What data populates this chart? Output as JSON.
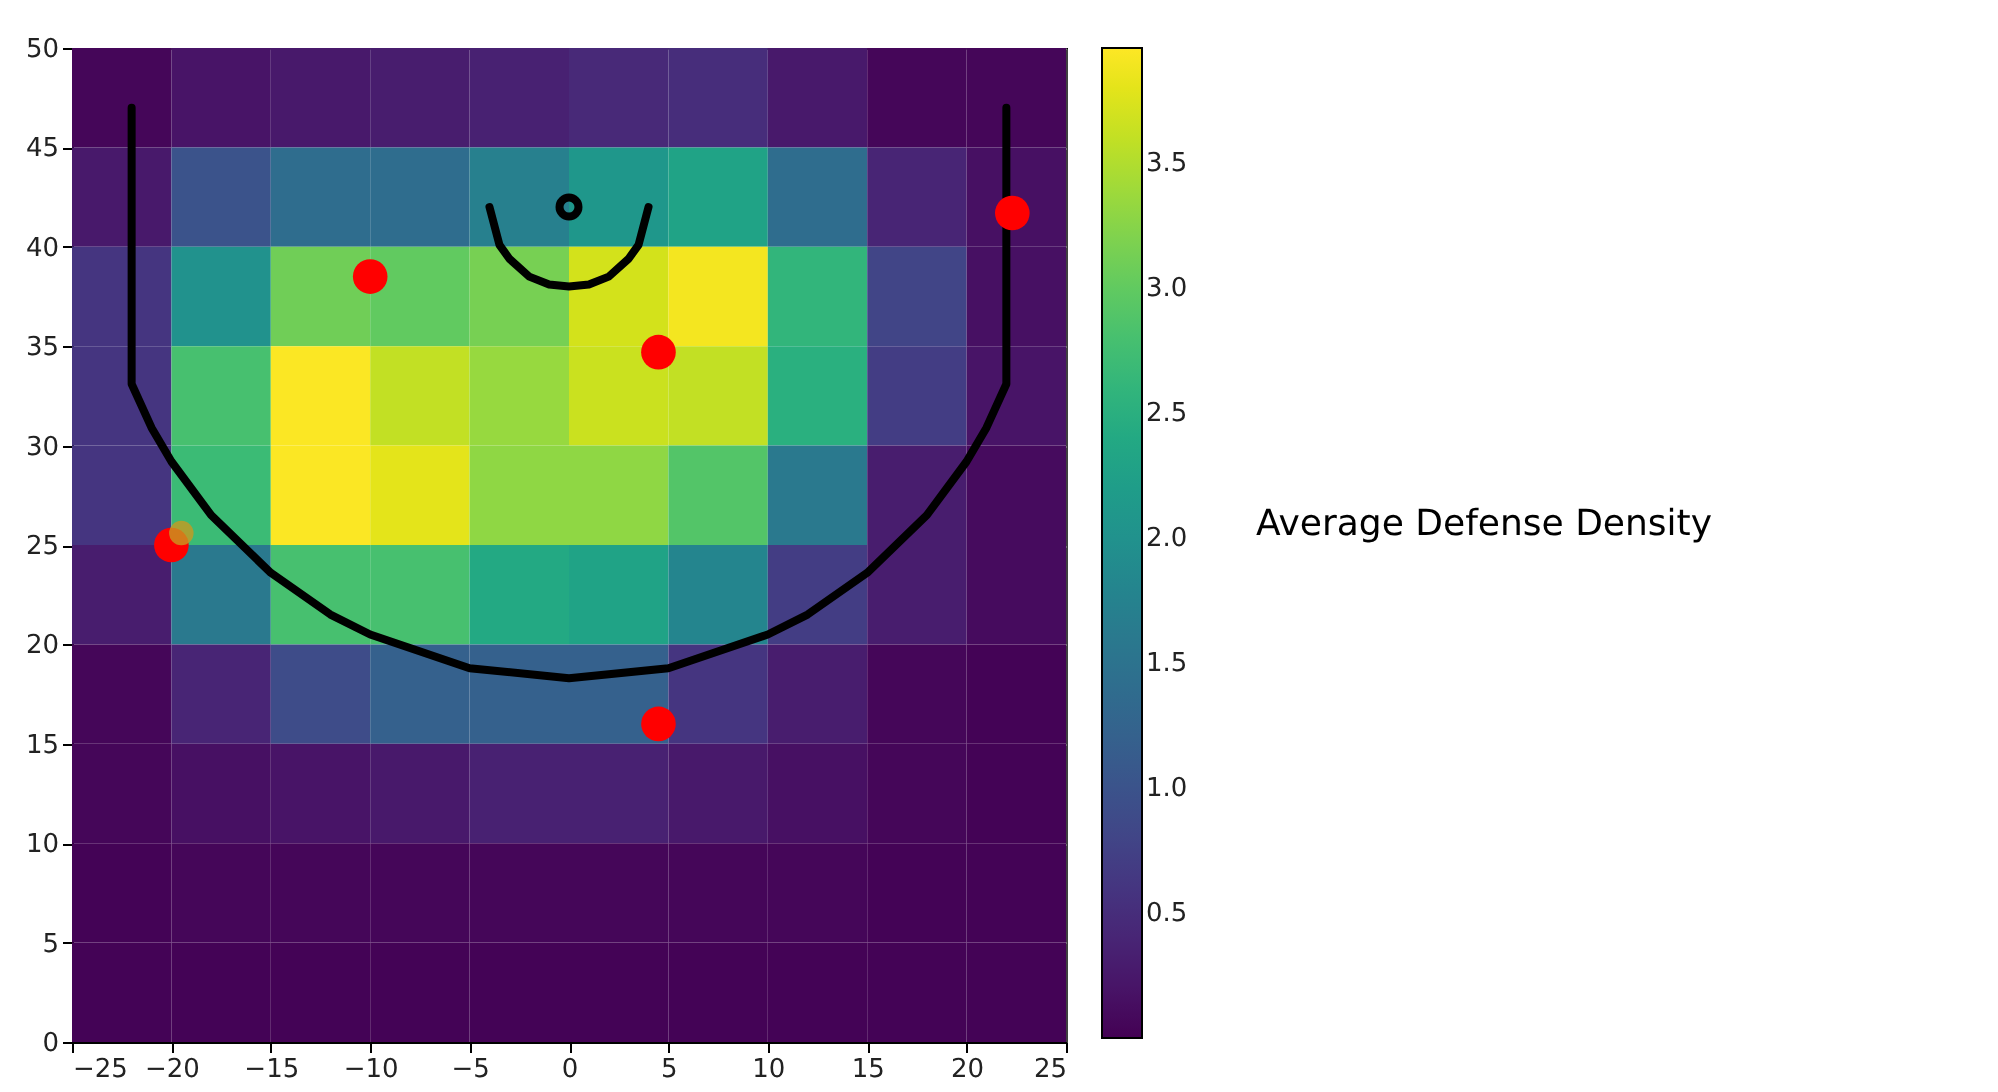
{
  "chart_data": {
    "type": "heatmap",
    "clabel": "Average Defense Density",
    "xlim": [
      -25,
      25
    ],
    "xticks": [
      -25,
      -20,
      -15,
      -10,
      -5,
      0,
      5,
      10,
      15,
      20,
      25
    ],
    "ylim": [
      0,
      50
    ],
    "yticks": [
      0,
      5,
      10,
      15,
      20,
      25,
      30,
      35,
      40,
      45,
      50
    ],
    "clim": [
      0,
      3.96
    ],
    "cticks": [
      0.5,
      {
        "value": 1,
        "label": "1.0"
      },
      1.5,
      {
        "value": 2,
        "label": "2.0"
      },
      2.5,
      {
        "value": 3,
        "label": "3.0"
      },
      3.5
    ],
    "grid": true,
    "cells": [
      [
        0.05,
        0.2,
        0.25,
        0.3,
        0.35,
        0.45,
        0.5,
        0.25,
        0.05,
        0.05
      ],
      [
        0.25,
        1.0,
        1.4,
        1.4,
        1.7,
        2.1,
        2.3,
        1.4,
        0.4,
        0.15
      ],
      [
        0.6,
        2.0,
        3.1,
        3.0,
        3.15,
        3.7,
        3.9,
        2.6,
        0.8,
        0.15
      ],
      [
        0.6,
        2.8,
        3.95,
        3.6,
        3.35,
        3.65,
        3.6,
        2.5,
        0.7,
        0.2
      ],
      [
        0.6,
        2.7,
        3.95,
        3.8,
        3.3,
        3.3,
        2.9,
        1.6,
        0.3,
        0.1
      ],
      [
        0.3,
        1.6,
        2.8,
        2.8,
        2.4,
        2.3,
        1.8,
        0.7,
        0.3,
        0.1
      ],
      [
        0.05,
        0.4,
        0.9,
        1.2,
        1.2,
        1.2,
        0.6,
        0.3,
        0.05,
        0.02
      ],
      [
        0.05,
        0.15,
        0.2,
        0.25,
        0.35,
        0.35,
        0.25,
        0.15,
        0.05,
        0.02
      ],
      [
        0.02,
        0.05,
        0.05,
        0.05,
        0.05,
        0.05,
        0.05,
        0.05,
        0.02,
        0.02
      ],
      [
        0.02,
        0.02,
        0.02,
        0.02,
        0.02,
        0.02,
        0.02,
        0.02,
        0.02,
        0.02
      ]
    ],
    "series": [
      {
        "type": "line",
        "color": "#000000",
        "x": [
          -22,
          -22,
          -21,
          -20,
          -18,
          -15,
          -12,
          -10,
          -5,
          0,
          5,
          10,
          12,
          15,
          18,
          20,
          21,
          22,
          22
        ],
        "values": [
          47,
          33.1,
          30.9,
          29.2,
          26.5,
          23.6,
          21.5,
          20.5,
          18.8,
          18.3,
          18.8,
          20.5,
          21.5,
          23.6,
          26.5,
          29.2,
          30.9,
          33.1,
          47
        ]
      },
      {
        "type": "line",
        "color": "#000000",
        "x": [
          -4,
          -3.5,
          -3,
          -2,
          -1,
          0,
          1,
          2,
          3,
          3.5,
          4
        ],
        "values": [
          42,
          40.1,
          39.4,
          38.5,
          38.1,
          38,
          38.1,
          38.5,
          39.4,
          40.1,
          42
        ]
      },
      {
        "type": "scatter",
        "color": "#ff0000",
        "x": [
          -20,
          -10,
          4.5,
          22.3,
          4.5
        ],
        "values": [
          25,
          38.5,
          34.7,
          41.7,
          16
        ]
      },
      {
        "type": "scatter",
        "color": "#c89a20",
        "x": [
          -19.5
        ],
        "values": [
          25.6
        ]
      },
      {
        "type": "scatter",
        "color": "#000000",
        "x": [
          0
        ],
        "values": [
          42
        ]
      }
    ]
  }
}
